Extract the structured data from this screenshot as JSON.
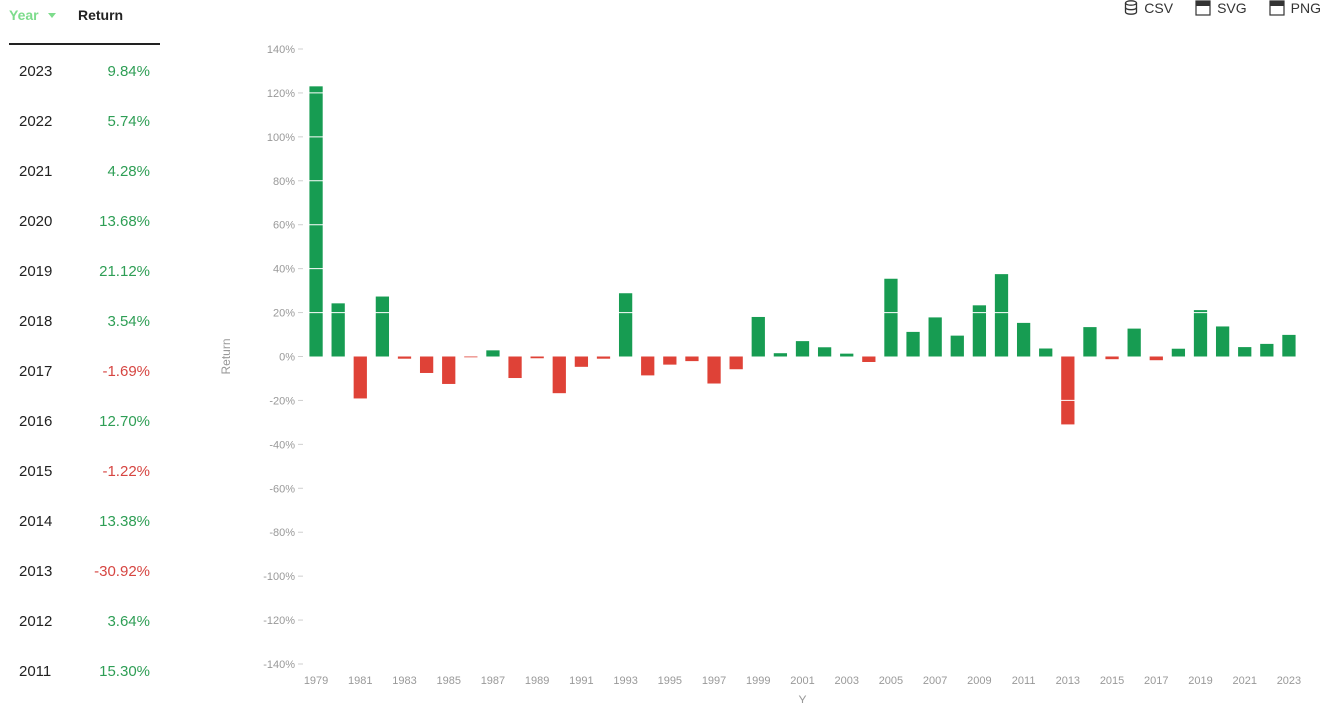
{
  "table": {
    "year_header": "Year",
    "return_header": "Return",
    "rows": [
      {
        "year": "2023",
        "value": "9.84%"
      },
      {
        "year": "2022",
        "value": "5.74%"
      },
      {
        "year": "2021",
        "value": "4.28%"
      },
      {
        "year": "2020",
        "value": "13.68%"
      },
      {
        "year": "2019",
        "value": "21.12%"
      },
      {
        "year": "2018",
        "value": "3.54%"
      },
      {
        "year": "2017",
        "value": "-1.69%"
      },
      {
        "year": "2016",
        "value": "12.70%"
      },
      {
        "year": "2015",
        "value": "-1.22%"
      },
      {
        "year": "2014",
        "value": "13.38%"
      },
      {
        "year": "2013",
        "value": "-30.92%"
      },
      {
        "year": "2012",
        "value": "3.64%"
      },
      {
        "year": "2011",
        "value": "15.30%"
      }
    ]
  },
  "toolbar": {
    "csv_label": "CSV",
    "svg_label": "SVG",
    "png_label": "PNG"
  },
  "colors": {
    "positive": "#179c52",
    "negative": "#df4237",
    "positive_text": "#2e9e55",
    "negative_text": "#d64541",
    "active_sort": "#7ddc8c"
  },
  "chart_data": {
    "type": "bar",
    "ylabel": "Return",
    "xlabel": "Y",
    "ylim": [
      -140,
      140
    ],
    "yticks": [
      140,
      120,
      100,
      80,
      60,
      40,
      20,
      0,
      -20,
      -40,
      -60,
      -80,
      -100,
      -120,
      -140
    ],
    "categories": [
      "1979",
      "1980",
      "1981",
      "1982",
      "1983",
      "1984",
      "1985",
      "1986",
      "1987",
      "1988",
      "1989",
      "1990",
      "1991",
      "1992",
      "1993",
      "1994",
      "1995",
      "1996",
      "1997",
      "1998",
      "1999",
      "2000",
      "2001",
      "2002",
      "2003",
      "2004",
      "2005",
      "2006",
      "2007",
      "2008",
      "2009",
      "2010",
      "2011",
      "2012",
      "2013",
      "2014",
      "2015",
      "2016",
      "2017",
      "2018",
      "2019",
      "2020",
      "2021",
      "2022",
      "2023"
    ],
    "x_tick_labels": [
      "1979",
      "1981",
      "1983",
      "1985",
      "1987",
      "1989",
      "1991",
      "1993",
      "1995",
      "1997",
      "1999",
      "2001",
      "2003",
      "2005",
      "2007",
      "2009",
      "2011",
      "2013",
      "2015",
      "2017",
      "2019",
      "2021",
      "2023"
    ],
    "values": [
      123.0,
      24.2,
      -19.1,
      27.3,
      -1.0,
      -7.5,
      -12.5,
      -0.2,
      2.8,
      -9.8,
      -0.8,
      -16.7,
      -4.7,
      -1.0,
      28.8,
      -8.6,
      -3.7,
      -2.1,
      -12.3,
      -5.8,
      18.0,
      1.5,
      7.0,
      4.2,
      1.3,
      -2.5,
      35.4,
      11.2,
      17.8,
      9.5,
      23.3,
      37.5,
      15.3,
      3.64,
      -30.92,
      13.38,
      -1.22,
      12.7,
      -1.69,
      3.54,
      21.12,
      13.68,
      4.28,
      5.74,
      9.84
    ]
  }
}
